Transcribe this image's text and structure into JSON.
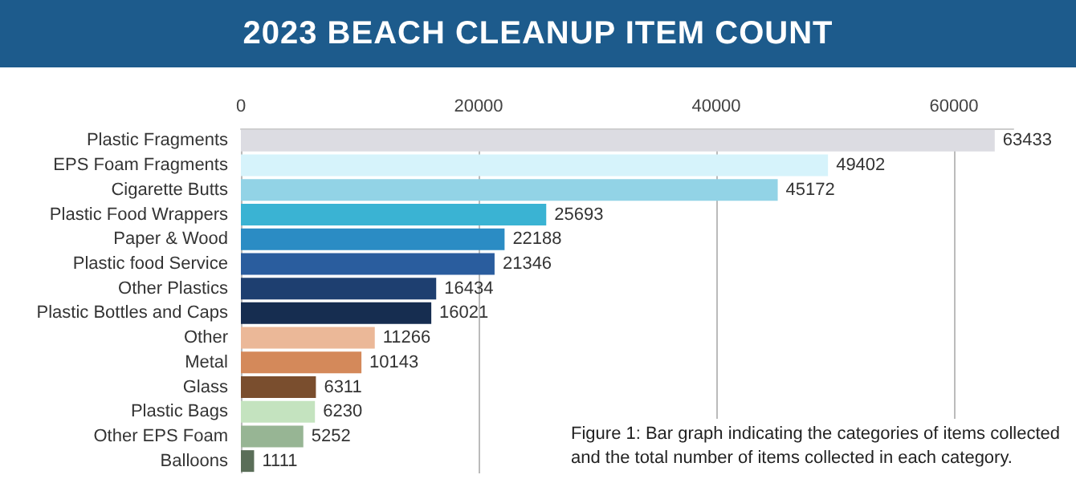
{
  "chart_data": {
    "type": "bar",
    "orientation": "horizontal",
    "title": "2023 BEACH CLEANUP ITEM COUNT",
    "categories": [
      "Plastic Fragments",
      "EPS Foam Fragments",
      "Cigarette Butts",
      "Plastic Food Wrappers",
      "Paper & Wood",
      "Plastic food Service",
      "Other Plastics",
      "Plastic Bottles and Caps",
      "Other",
      "Metal",
      "Glass",
      "Plastic Bags",
      "Other EPS Foam",
      "Balloons"
    ],
    "values": [
      63433,
      49402,
      45172,
      25693,
      22188,
      21346,
      16434,
      16021,
      11266,
      10143,
      6311,
      6230,
      5252,
      1111
    ],
    "colors": [
      "#dcdce2",
      "#d6f3fb",
      "#92d3e6",
      "#3ab3d3",
      "#2b8cc4",
      "#2a5d9e",
      "#1e3f70",
      "#162d50",
      "#ebb898",
      "#d4895a",
      "#7a4e2e",
      "#c4e3bf",
      "#97b594",
      "#5a6e58"
    ],
    "xlim": [
      0,
      65000
    ],
    "xticks": [
      0,
      20000,
      40000,
      60000
    ],
    "grid": "x",
    "data_labels": true,
    "annotations": [
      "Figure 1: Bar graph indicating the categories of items collected\nand the total number of items collected in each category."
    ]
  }
}
